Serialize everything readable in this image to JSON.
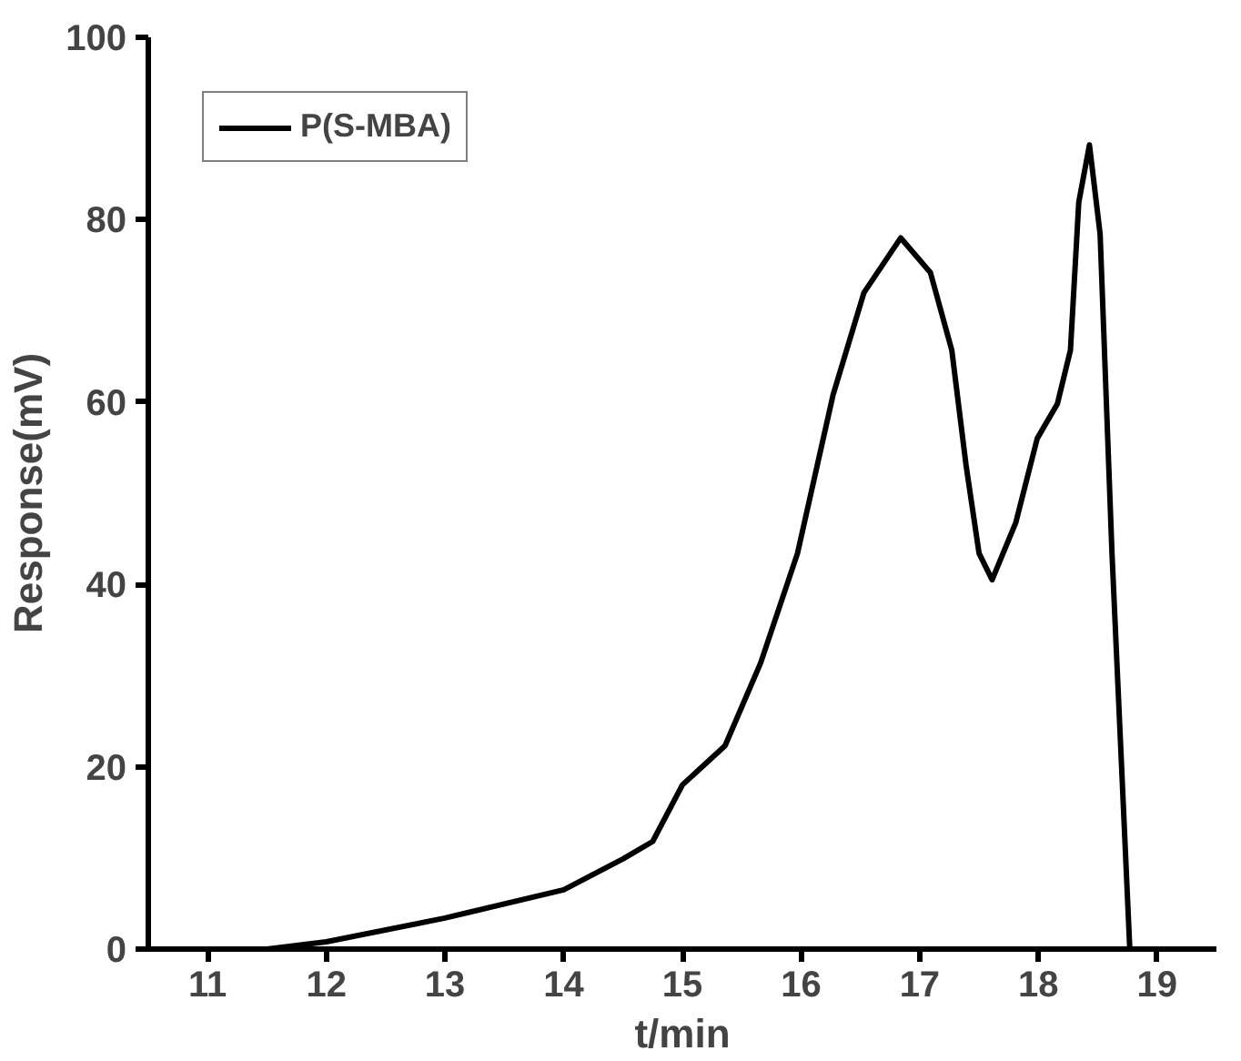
{
  "chart_data": {
    "type": "line",
    "xlabel": "t/min",
    "ylabel": "Response(mV)",
    "xlim": [
      10.5,
      19.5
    ],
    "xticks": [
      11,
      12,
      13,
      14,
      15,
      16,
      17,
      18,
      19
    ],
    "ylim": [
      0,
      100
    ],
    "yticks": [
      0,
      20,
      40,
      60,
      80,
      100
    ],
    "grid": false,
    "legend": "top left",
    "marker": "none",
    "line_style": "solid",
    "series": [
      {
        "name": "P(S-MBA)",
        "color": "#000000",
        "x": [
          11.5,
          12,
          13,
          14,
          14.5,
          14.75,
          15,
          15.36,
          15.66,
          15.97,
          16.27,
          16.53,
          16.84,
          17.09,
          17.27,
          17.39,
          17.5,
          17.61,
          17.81,
          17.99,
          18.16,
          18.27,
          18.34,
          18.43,
          18.52,
          18.62,
          18.77
        ],
        "values": [
          0,
          0.8,
          3.4,
          6.5,
          9.9,
          11.8,
          18,
          22.3,
          31.4,
          43.4,
          60.8,
          72,
          78,
          74.2,
          65.7,
          53.1,
          43.4,
          40.5,
          46.8,
          56,
          59.8,
          65.7,
          81.9,
          88.2,
          78.4,
          43.4,
          0
        ]
      }
    ]
  }
}
